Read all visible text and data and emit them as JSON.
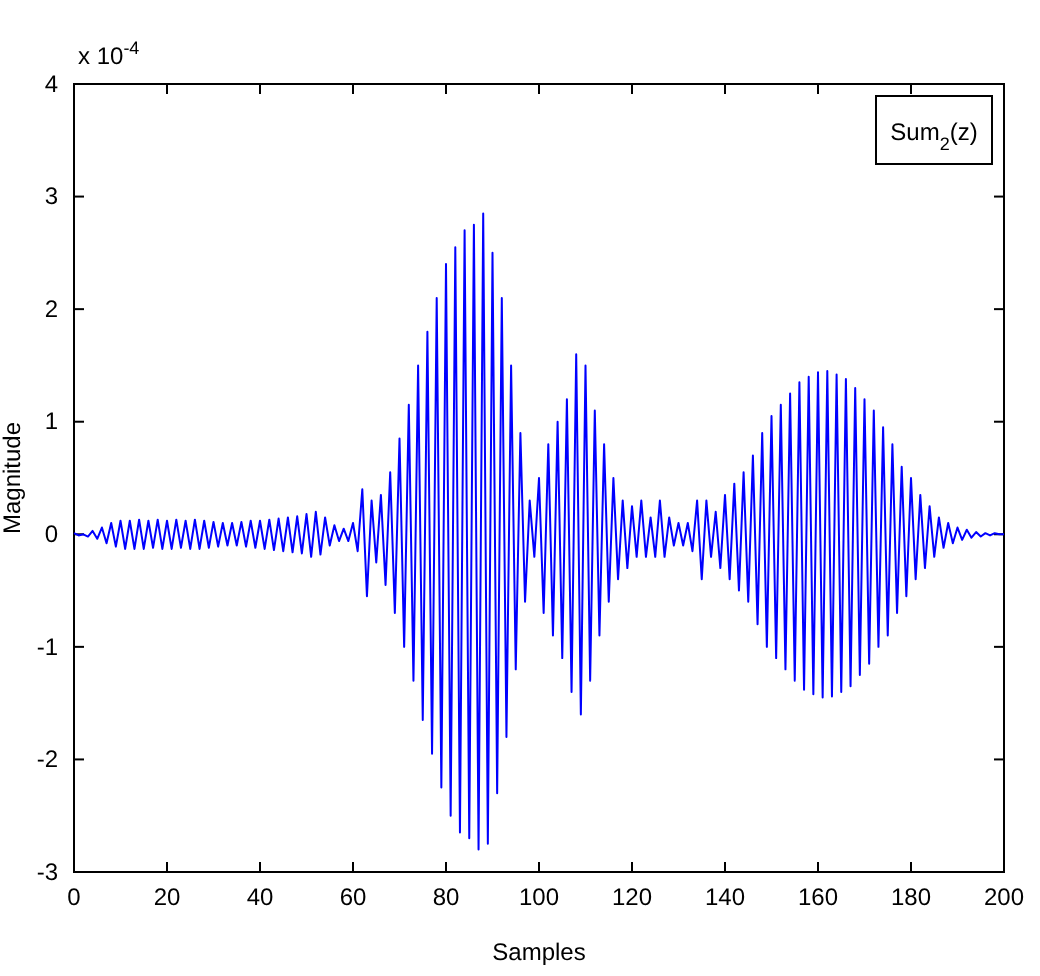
{
  "chart_data": {
    "type": "line",
    "xlabel": "Samples",
    "ylabel": "Magnitude",
    "annotations": [
      "x 10$^{-4}$"
    ],
    "x": [
      0,
      1,
      2,
      3,
      4,
      5,
      6,
      7,
      8,
      9,
      10,
      11,
      12,
      13,
      14,
      15,
      16,
      17,
      18,
      19,
      20,
      21,
      22,
      23,
      24,
      25,
      26,
      27,
      28,
      29,
      30,
      31,
      32,
      33,
      34,
      35,
      36,
      37,
      38,
      39,
      40,
      41,
      42,
      43,
      44,
      45,
      46,
      47,
      48,
      49,
      50,
      51,
      52,
      53,
      54,
      55,
      56,
      57,
      58,
      59,
      60,
      61,
      62,
      63,
      64,
      65,
      66,
      67,
      68,
      69,
      70,
      71,
      72,
      73,
      74,
      75,
      76,
      77,
      78,
      79,
      80,
      81,
      82,
      83,
      84,
      85,
      86,
      87,
      88,
      89,
      90,
      91,
      92,
      93,
      94,
      95,
      96,
      97,
      98,
      99,
      100,
      101,
      102,
      103,
      104,
      105,
      106,
      107,
      108,
      109,
      110,
      111,
      112,
      113,
      114,
      115,
      116,
      117,
      118,
      119,
      120,
      121,
      122,
      123,
      124,
      125,
      126,
      127,
      128,
      129,
      130,
      131,
      132,
      133,
      134,
      135,
      136,
      137,
      138,
      139,
      140,
      141,
      142,
      143,
      144,
      145,
      146,
      147,
      148,
      149,
      150,
      151,
      152,
      153,
      154,
      155,
      156,
      157,
      158,
      159,
      160,
      161,
      162,
      163,
      164,
      165,
      166,
      167,
      168,
      169,
      170,
      171,
      172,
      173,
      174,
      175,
      176,
      177,
      178,
      179,
      180,
      181,
      182,
      183,
      184,
      185,
      186,
      187,
      188,
      189,
      190,
      191,
      192,
      193,
      194,
      195,
      196,
      197,
      198,
      199,
      200
    ],
    "series": [
      {
        "name": "Sum$_{2}$(z)",
        "color": "#0000ff",
        "values": [
          0.01,
          -0.01,
          0,
          -0.02,
          0.03,
          -0.04,
          0.06,
          -0.08,
          0.1,
          -0.11,
          0.12,
          -0.13,
          0.12,
          -0.13,
          0.13,
          -0.13,
          0.12,
          -0.12,
          0.13,
          -0.13,
          0.12,
          -0.13,
          0.13,
          -0.12,
          0.12,
          -0.13,
          0.13,
          -0.13,
          0.12,
          -0.12,
          0.11,
          -0.11,
          0.1,
          -0.1,
          0.1,
          -0.1,
          0.11,
          -0.11,
          0.12,
          -0.12,
          0.12,
          -0.13,
          0.13,
          -0.14,
          0.14,
          -0.15,
          0.15,
          -0.16,
          0.16,
          -0.17,
          0.18,
          -0.2,
          0.2,
          -0.18,
          0.15,
          -0.1,
          0.08,
          -0.06,
          0.05,
          -0.06,
          0.1,
          -0.15,
          0.4,
          -0.55,
          0.3,
          -0.25,
          0.35,
          -0.45,
          0.55,
          -0.7,
          0.85,
          -1.0,
          1.15,
          -1.3,
          1.5,
          -1.65,
          1.8,
          -1.95,
          2.1,
          -2.25,
          2.4,
          -2.5,
          2.55,
          -2.65,
          2.7,
          -2.7,
          2.75,
          -2.8,
          2.85,
          -2.75,
          2.5,
          -2.3,
          2.1,
          -1.8,
          1.5,
          -1.2,
          0.9,
          -0.6,
          0.3,
          -0.2,
          0.5,
          -0.7,
          0.8,
          -0.9,
          1.0,
          -1.1,
          1.2,
          -1.4,
          1.6,
          -1.6,
          1.5,
          -1.3,
          1.1,
          -0.9,
          0.8,
          -0.6,
          0.5,
          -0.4,
          0.3,
          -0.3,
          0.25,
          -0.2,
          0.3,
          -0.2,
          0.15,
          -0.2,
          0.3,
          -0.2,
          0.15,
          -0.1,
          0.1,
          -0.1,
          0.1,
          -0.15,
          0.3,
          -0.4,
          0.3,
          -0.2,
          0.2,
          -0.3,
          0.35,
          -0.4,
          0.45,
          -0.5,
          0.55,
          -0.6,
          0.7,
          -0.8,
          0.9,
          -1.0,
          1.05,
          -1.1,
          1.15,
          -1.2,
          1.25,
          -1.3,
          1.35,
          -1.38,
          1.4,
          -1.42,
          1.44,
          -1.45,
          1.45,
          -1.44,
          1.42,
          -1.4,
          1.38,
          -1.35,
          1.3,
          -1.25,
          1.2,
          -1.15,
          1.1,
          -1.0,
          0.95,
          -0.9,
          0.8,
          -0.7,
          0.6,
          -0.55,
          0.5,
          -0.4,
          0.35,
          -0.3,
          0.25,
          -0.2,
          0.15,
          -0.12,
          0.1,
          -0.08,
          0.06,
          -0.05,
          0.04,
          -0.03,
          0.02,
          -0.02,
          0.01,
          -0.01,
          0.01,
          0,
          0
        ]
      }
    ],
    "xlim": [
      0,
      200
    ],
    "xticks": [
      0,
      20,
      40,
      60,
      80,
      100,
      120,
      140,
      160,
      180,
      200
    ],
    "ylim": [
      -3,
      4
    ],
    "yticks": [
      -3,
      -2,
      -1,
      0,
      1,
      2,
      3,
      4
    ],
    "legend": "top right",
    "marker": "none",
    "line_style": "solid"
  }
}
